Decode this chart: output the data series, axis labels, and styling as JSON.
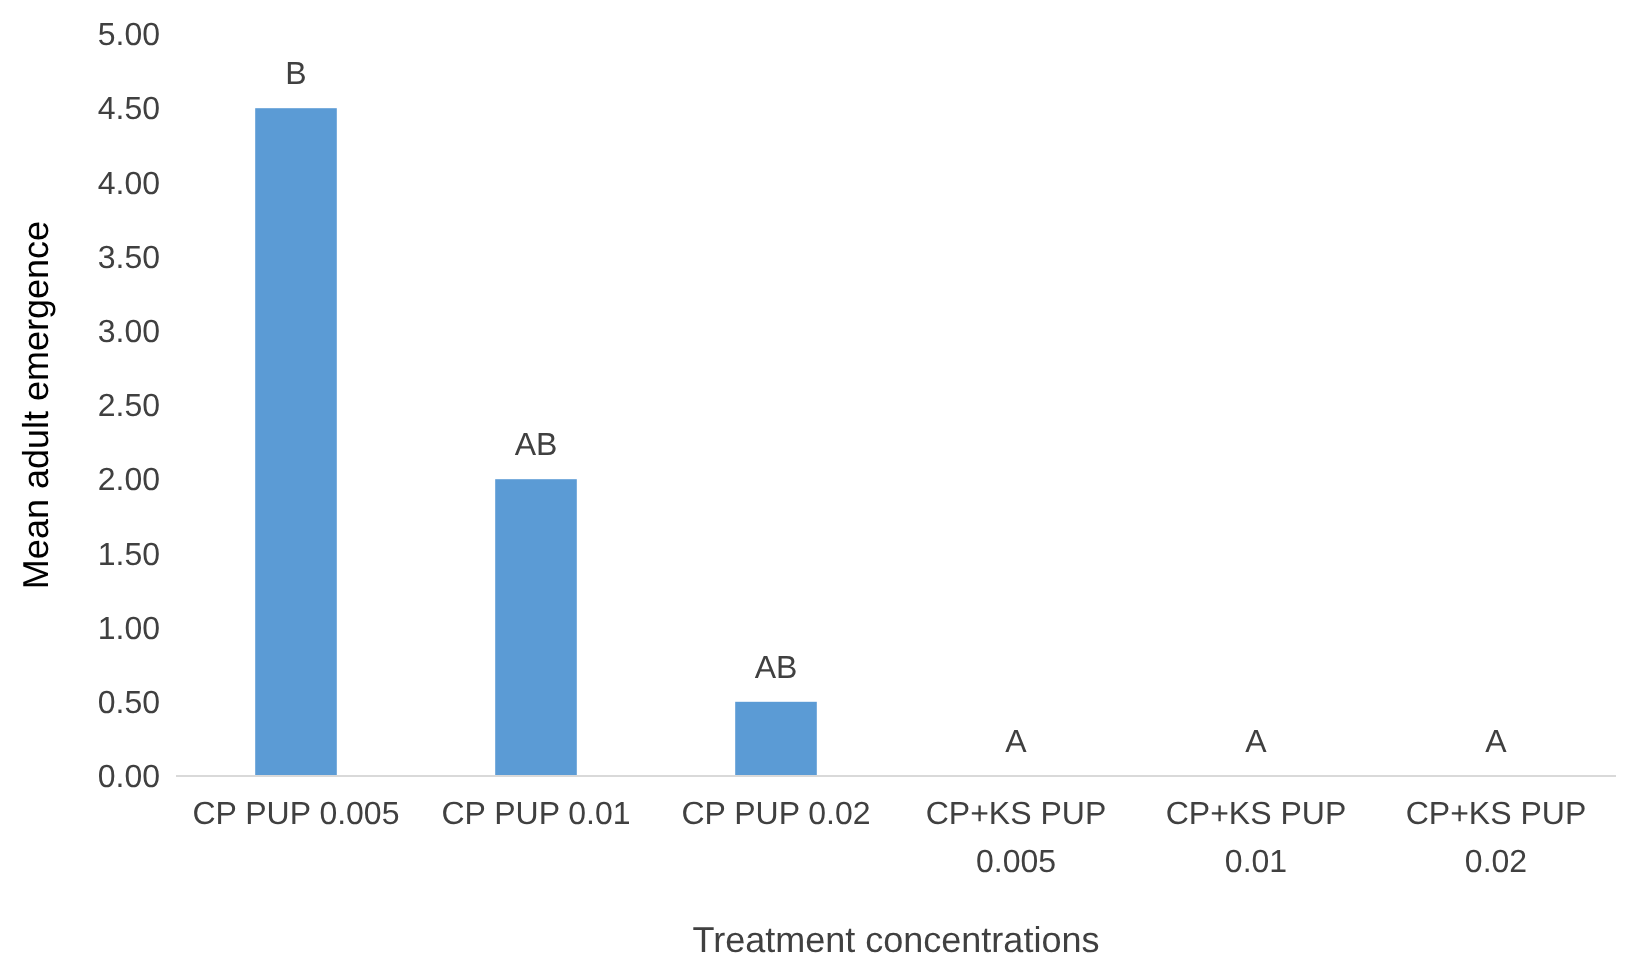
{
  "chart_data": {
    "type": "bar",
    "xlabel": "Treatment concentrations",
    "ylabel": "Mean adult emergence",
    "categories": [
      "CP PUP 0.005",
      "CP PUP 0.01",
      "CP PUP 0.02",
      "CP+KS PUP 0.005",
      "CP+KS PUP 0.01",
      "CP+KS PUP 0.02"
    ],
    "values": [
      4.5,
      2.0,
      0.5,
      0,
      0,
      0
    ],
    "color": "#5b9bd5",
    "ylim": [
      0,
      5
    ],
    "yticks": [
      {
        "value": 0,
        "label": "0.00"
      },
      {
        "value": 0.5,
        "label": "0.50"
      },
      {
        "value": 1,
        "label": "1.00"
      },
      {
        "value": 1.5,
        "label": "1.50"
      },
      {
        "value": 2,
        "label": "2.00"
      },
      {
        "value": 2.5,
        "label": "2.50"
      },
      {
        "value": 3,
        "label": "3.00"
      },
      {
        "value": 3.5,
        "label": "3.50"
      },
      {
        "value": 4,
        "label": "4.00"
      },
      {
        "value": 4.5,
        "label": "4.50"
      },
      {
        "value": 5,
        "label": "5.00"
      }
    ],
    "grid": false,
    "annotations": [
      {
        "text": "B",
        "x": "CP PUP 0.005",
        "y": 4.5
      },
      {
        "text": "AB",
        "x": "CP PUP 0.01",
        "y": 2.0
      },
      {
        "text": "AB",
        "x": "CP PUP 0.02",
        "y": 0.5
      },
      {
        "text": "A",
        "x": "CP+KS PUP 0.005",
        "y": 0
      },
      {
        "text": "A",
        "x": "CP+KS PUP 0.01",
        "y": 0
      },
      {
        "text": "A",
        "x": "CP+KS PUP 0.02",
        "y": 0
      }
    ]
  }
}
